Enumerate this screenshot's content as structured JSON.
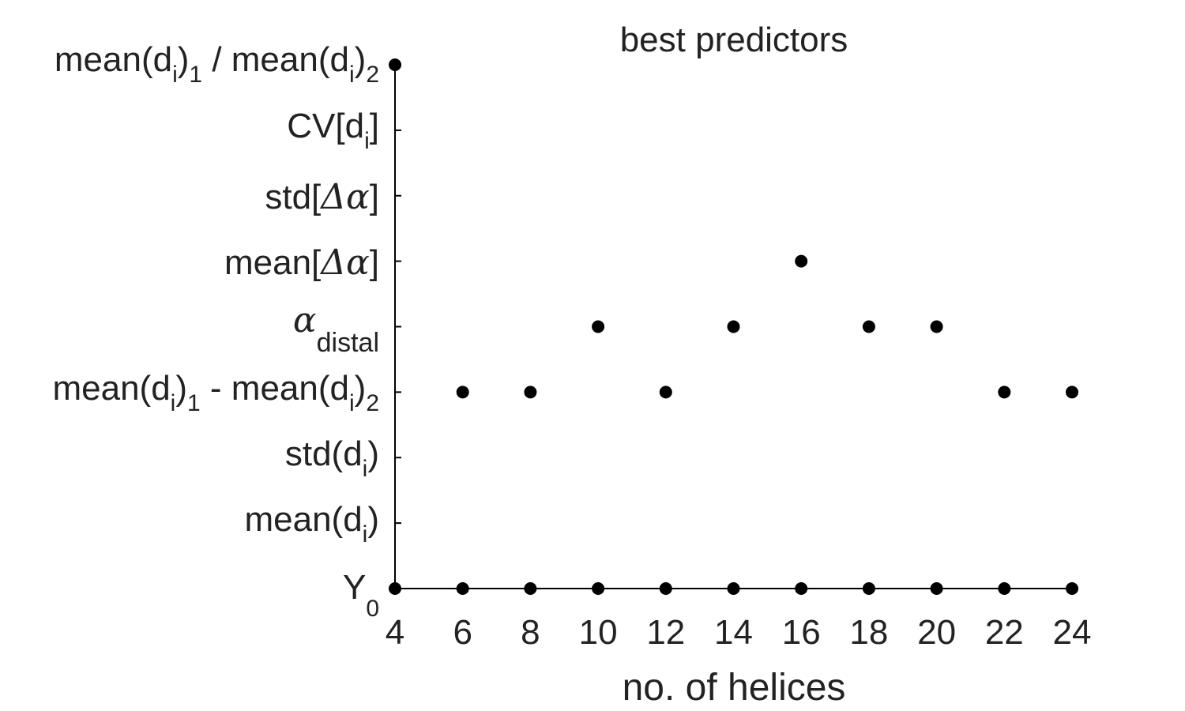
{
  "chart_data": {
    "type": "scatter",
    "title": "best predictors",
    "xlabel": "no. of helices",
    "ylabel": "",
    "xlim": [
      4,
      24
    ],
    "x_ticks": [
      "4",
      "6",
      "8",
      "10",
      "12",
      "14",
      "16",
      "18",
      "20",
      "22",
      "24"
    ],
    "y_categories": [
      "Y0",
      "mean(di)",
      "std(di)",
      "mean(di)1 - mean(di)2",
      "αdistal",
      "mean[Δα]",
      "std[Δα]",
      "CV[di]",
      "mean(di)1 / mean(di)2"
    ],
    "series": [
      {
        "points": [
          {
            "x": 4,
            "y": "Y0"
          },
          {
            "x": 4,
            "y": "mean(di)1 / mean(di)2"
          },
          {
            "x": 6,
            "y": "Y0"
          },
          {
            "x": 6,
            "y": "mean(di)1 - mean(di)2"
          },
          {
            "x": 8,
            "y": "Y0"
          },
          {
            "x": 8,
            "y": "mean(di)1 - mean(di)2"
          },
          {
            "x": 10,
            "y": "Y0"
          },
          {
            "x": 10,
            "y": "αdistal"
          },
          {
            "x": 12,
            "y": "Y0"
          },
          {
            "x": 12,
            "y": "mean(di)1 - mean(di)2"
          },
          {
            "x": 14,
            "y": "Y0"
          },
          {
            "x": 14,
            "y": "αdistal"
          },
          {
            "x": 16,
            "y": "Y0"
          },
          {
            "x": 16,
            "y": "mean[Δα]"
          },
          {
            "x": 18,
            "y": "Y0"
          },
          {
            "x": 18,
            "y": "αdistal"
          },
          {
            "x": 20,
            "y": "Y0"
          },
          {
            "x": 20,
            "y": "αdistal"
          },
          {
            "x": 22,
            "y": "Y0"
          },
          {
            "x": 22,
            "y": "mean(di)1 - mean(di)2"
          },
          {
            "x": 24,
            "y": "Y0"
          },
          {
            "x": 24,
            "y": "mean(di)1 - mean(di)2"
          }
        ]
      }
    ],
    "marker_color": "#000000",
    "grid": false,
    "legend": "none"
  }
}
